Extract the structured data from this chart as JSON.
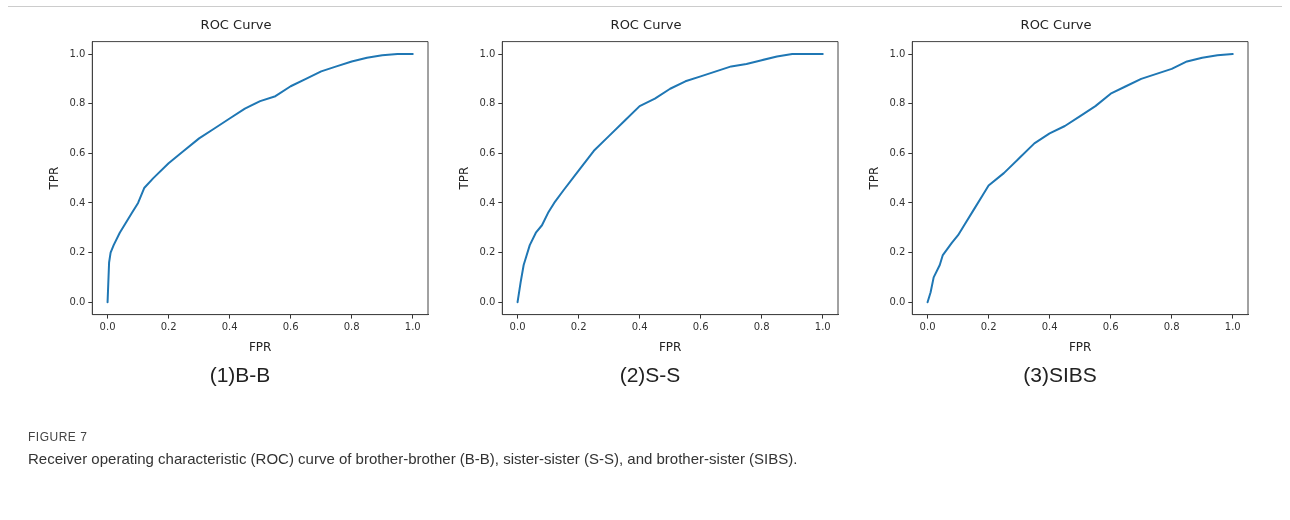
{
  "chart_data": [
    {
      "type": "line",
      "title": "ROC Curve",
      "xlabel": "FPR",
      "ylabel": "TPR",
      "annotations": [
        "(1)B-B",
        "FIGURE 7",
        "Receiver operating characteristic (ROC) curve of brother-brother (B-B), sister-sister (S-S), and brother-sister (SIBS)."
      ],
      "xlim": [
        -0.05,
        1.05
      ],
      "ylim": [
        -0.05,
        1.05
      ],
      "xticks": [
        {
          "value": 0,
          "label": "0.0"
        },
        {
          "value": 0.2,
          "label": "0.2"
        },
        {
          "value": 0.4,
          "label": "0.4"
        },
        {
          "value": 0.6,
          "label": "0.6"
        },
        {
          "value": 0.8,
          "label": "0.8"
        },
        {
          "value": 1,
          "label": "1.0"
        }
      ],
      "yticks": [
        {
          "value": 0,
          "label": "0.0"
        },
        {
          "value": 0.2,
          "label": "0.2"
        },
        {
          "value": 0.4,
          "label": "0.4"
        },
        {
          "value": 0.6,
          "label": "0.6"
        },
        {
          "value": 0.8,
          "label": "0.8"
        },
        {
          "value": 1,
          "label": "1.0"
        }
      ],
      "grid": false,
      "legend": false,
      "marker": "none",
      "line_style": "solid",
      "series": [
        {
          "color": "#1f77b4",
          "x": [
            0,
            0.005,
            0.01,
            0.02,
            0.04,
            0.06,
            0.08,
            0.1,
            0.12,
            0.15,
            0.2,
            0.25,
            0.3,
            0.35,
            0.4,
            0.45,
            0.5,
            0.55,
            0.6,
            0.65,
            0.7,
            0.75,
            0.8,
            0.85,
            0.9,
            0.95,
            1
          ],
          "values": [
            0,
            0.16,
            0.2,
            0.23,
            0.28,
            0.32,
            0.36,
            0.4,
            0.46,
            0.5,
            0.56,
            0.61,
            0.66,
            0.7,
            0.74,
            0.78,
            0.81,
            0.83,
            0.87,
            0.9,
            0.93,
            0.95,
            0.97,
            0.985,
            0.995,
            1,
            1
          ]
        }
      ]
    },
    {
      "type": "line",
      "title": "ROC Curve",
      "xlabel": "FPR",
      "ylabel": "TPR",
      "annotations": [
        "(2)S-S"
      ],
      "xlim": [
        -0.05,
        1.05
      ],
      "ylim": [
        -0.05,
        1.05
      ],
      "xticks": [
        {
          "value": 0,
          "label": "0.0"
        },
        {
          "value": 0.2,
          "label": "0.2"
        },
        {
          "value": 0.4,
          "label": "0.4"
        },
        {
          "value": 0.6,
          "label": "0.6"
        },
        {
          "value": 0.8,
          "label": "0.8"
        },
        {
          "value": 1,
          "label": "1.0"
        }
      ],
      "yticks": [
        {
          "value": 0,
          "label": "0.0"
        },
        {
          "value": 0.2,
          "label": "0.2"
        },
        {
          "value": 0.4,
          "label": "0.4"
        },
        {
          "value": 0.6,
          "label": "0.6"
        },
        {
          "value": 0.8,
          "label": "0.8"
        },
        {
          "value": 1,
          "label": "1.0"
        }
      ],
      "grid": false,
      "legend": false,
      "marker": "none",
      "line_style": "solid",
      "series": [
        {
          "color": "#1f77b4",
          "x": [
            0,
            0.01,
            0.02,
            0.04,
            0.06,
            0.08,
            0.1,
            0.12,
            0.15,
            0.2,
            0.25,
            0.3,
            0.35,
            0.4,
            0.45,
            0.5,
            0.55,
            0.6,
            0.65,
            0.7,
            0.75,
            0.8,
            0.85,
            0.9,
            1
          ],
          "values": [
            0,
            0.08,
            0.15,
            0.23,
            0.28,
            0.31,
            0.36,
            0.4,
            0.45,
            0.53,
            0.61,
            0.67,
            0.73,
            0.79,
            0.82,
            0.86,
            0.89,
            0.91,
            0.93,
            0.95,
            0.96,
            0.975,
            0.99,
            1,
            1
          ]
        }
      ]
    },
    {
      "type": "line",
      "title": "ROC Curve",
      "xlabel": "FPR",
      "ylabel": "TPR",
      "annotations": [
        "(3)SIBS"
      ],
      "xlim": [
        -0.05,
        1.05
      ],
      "ylim": [
        -0.05,
        1.05
      ],
      "xticks": [
        {
          "value": 0,
          "label": "0.0"
        },
        {
          "value": 0.2,
          "label": "0.2"
        },
        {
          "value": 0.4,
          "label": "0.4"
        },
        {
          "value": 0.6,
          "label": "0.6"
        },
        {
          "value": 0.8,
          "label": "0.8"
        },
        {
          "value": 1,
          "label": "1.0"
        }
      ],
      "yticks": [
        {
          "value": 0,
          "label": "0.0"
        },
        {
          "value": 0.2,
          "label": "0.2"
        },
        {
          "value": 0.4,
          "label": "0.4"
        },
        {
          "value": 0.6,
          "label": "0.6"
        },
        {
          "value": 0.8,
          "label": "0.8"
        },
        {
          "value": 1,
          "label": "1.0"
        }
      ],
      "grid": false,
      "legend": false,
      "marker": "none",
      "line_style": "solid",
      "series": [
        {
          "color": "#1f77b4",
          "x": [
            0,
            0.01,
            0.02,
            0.04,
            0.05,
            0.08,
            0.1,
            0.12,
            0.15,
            0.18,
            0.2,
            0.25,
            0.3,
            0.35,
            0.4,
            0.45,
            0.5,
            0.55,
            0.6,
            0.65,
            0.7,
            0.75,
            0.8,
            0.85,
            0.9,
            0.95,
            1
          ],
          "values": [
            0,
            0.04,
            0.1,
            0.15,
            0.19,
            0.24,
            0.27,
            0.31,
            0.37,
            0.43,
            0.47,
            0.52,
            0.58,
            0.64,
            0.68,
            0.71,
            0.75,
            0.79,
            0.84,
            0.87,
            0.9,
            0.92,
            0.94,
            0.97,
            0.985,
            0.995,
            1
          ]
        }
      ]
    }
  ]
}
